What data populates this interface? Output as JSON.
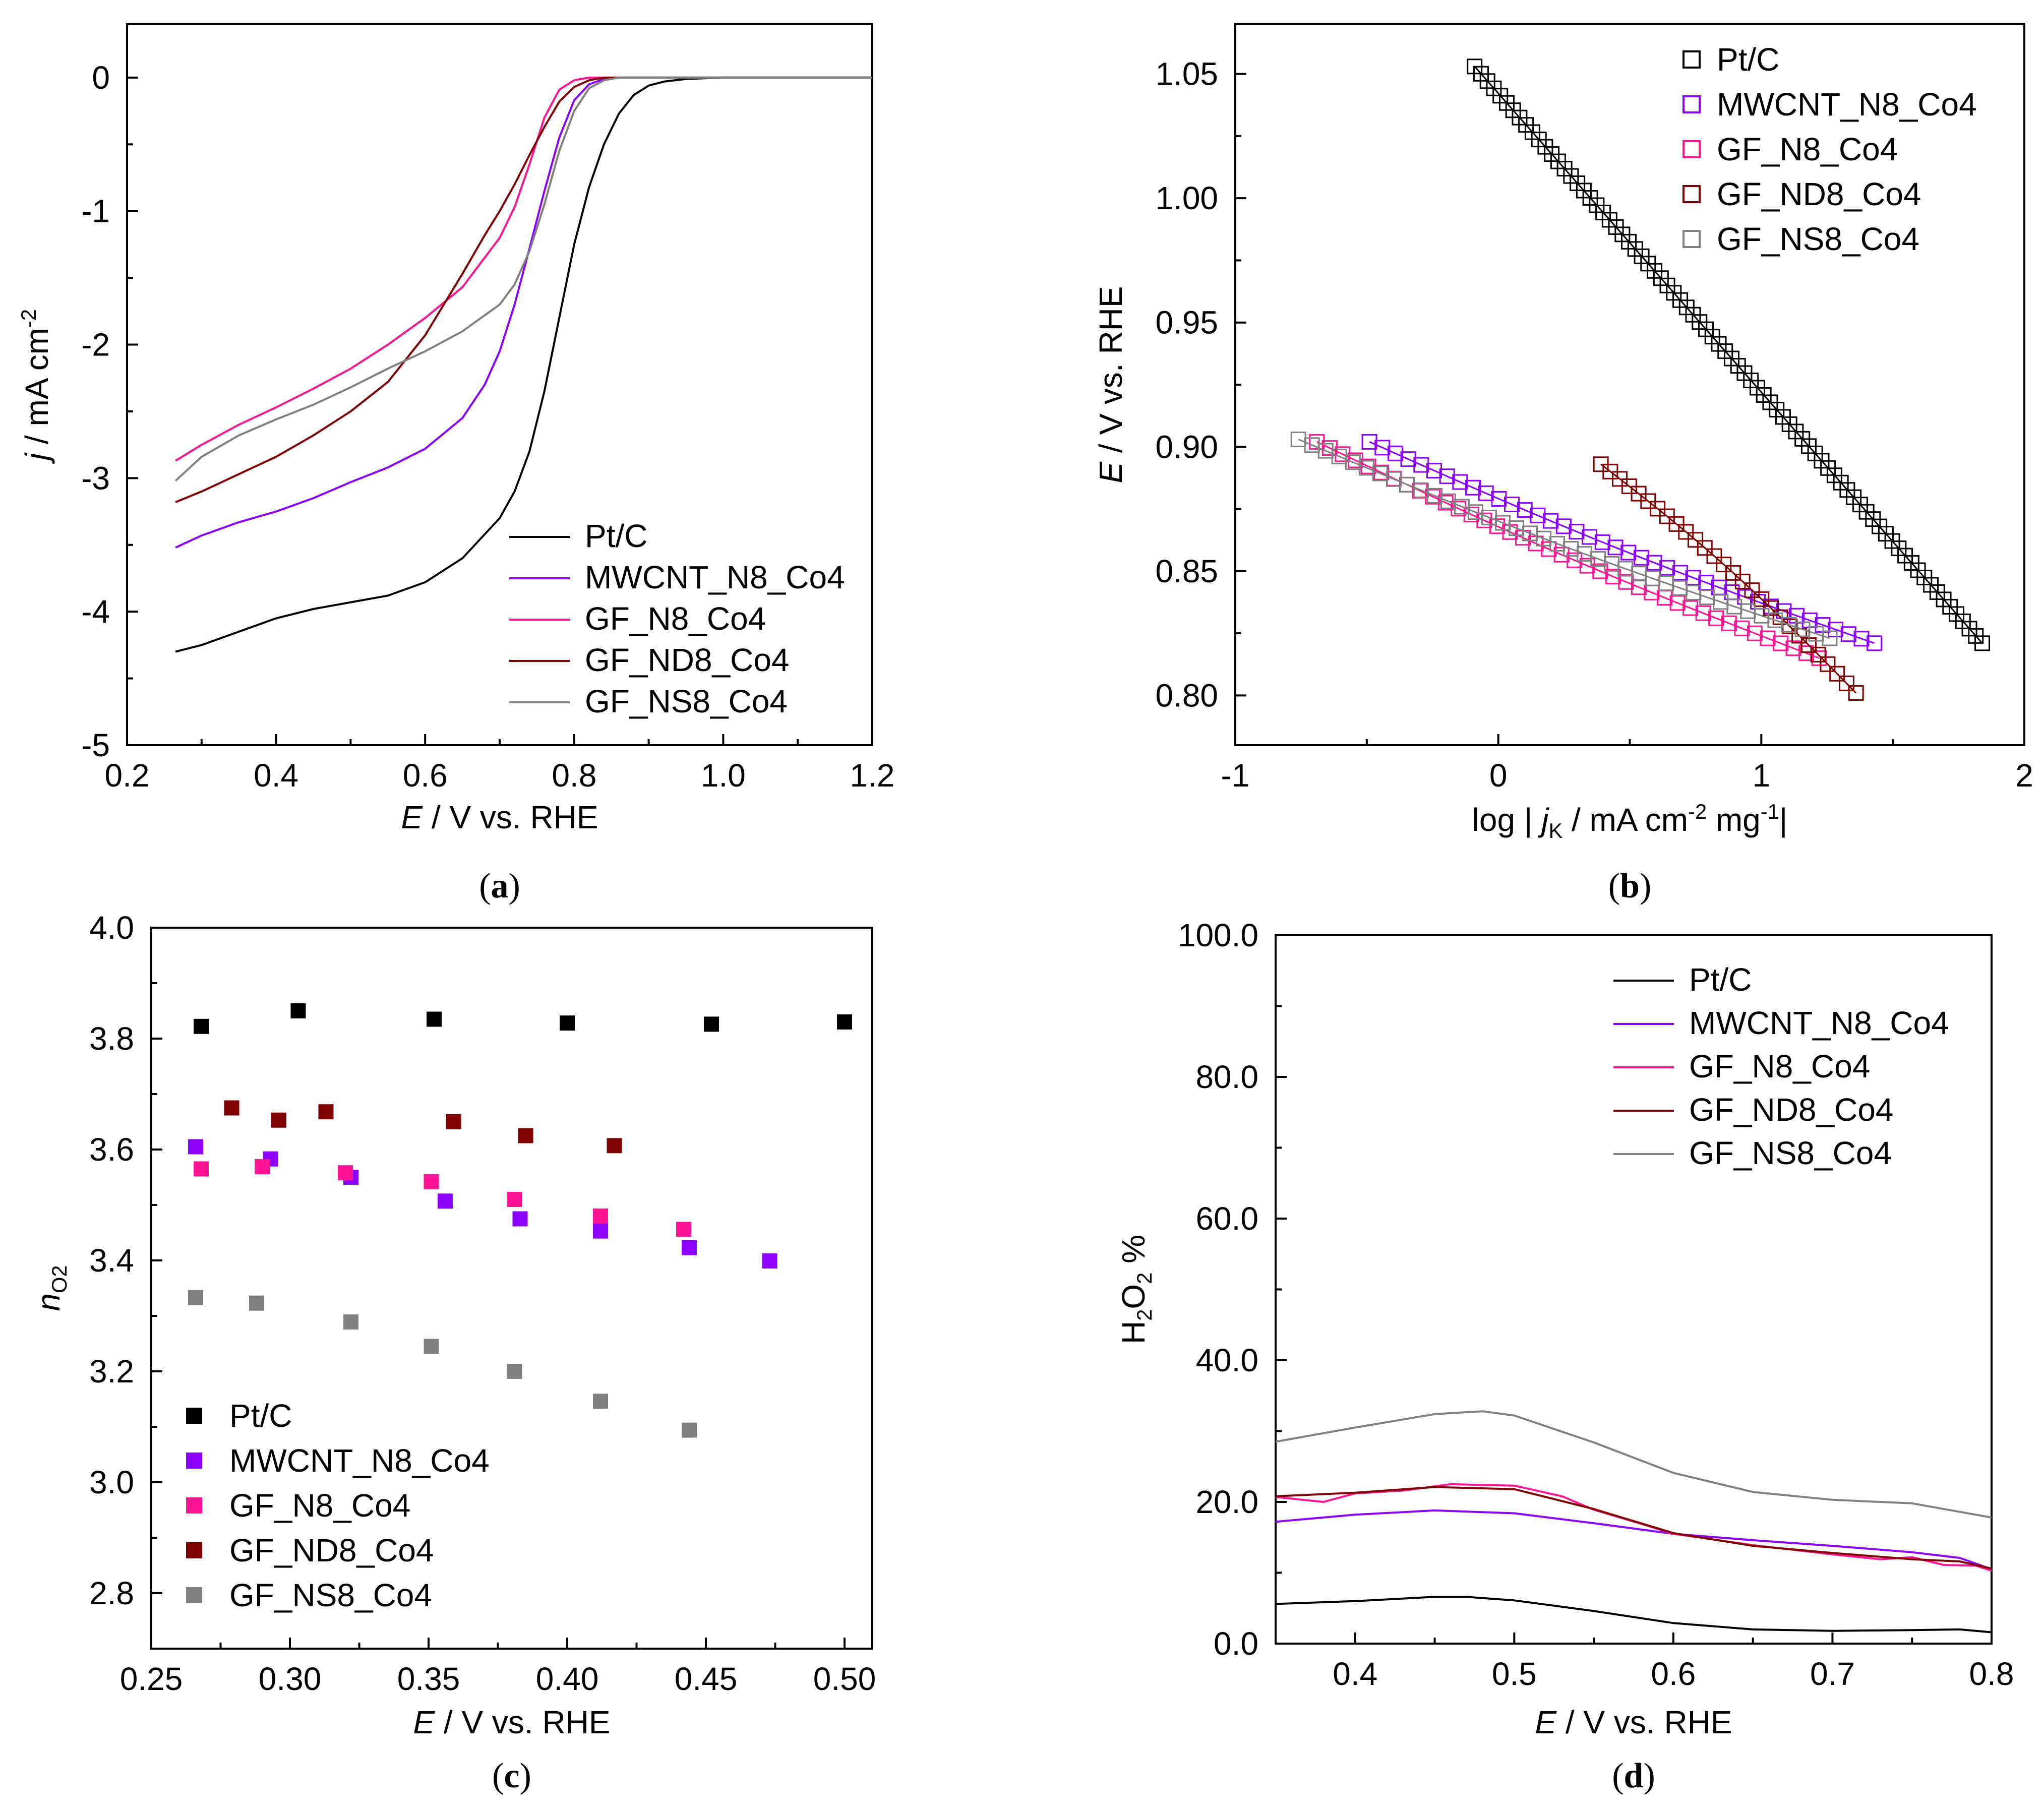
{
  "colors": {
    "ptc": "#000000",
    "mwcnt": "#8B00FF",
    "gfn8": "#FF1493",
    "gfnd8": "#800000",
    "gfns8": "#808080"
  },
  "chart_data": [
    {
      "type": "line",
      "panel": "(a)",
      "xlabel_italic": "E",
      "xlabel_rest": " / V vs. RHE",
      "ylabel_italic": "j",
      "ylabel_rest": " / mA cm",
      "ylabel_sup": "-2",
      "xlim": [
        0.2,
        1.2
      ],
      "ylim": [
        -5,
        0.4
      ],
      "xticks": [
        0.2,
        0.4,
        0.6,
        0.8,
        1.0,
        1.2
      ],
      "xtick_labels": [
        "0.2",
        "0.4",
        "0.6",
        "0.8",
        "1.0",
        "1.2"
      ],
      "yticks": [
        -5,
        -4,
        -3,
        -2,
        -1,
        0
      ],
      "ytick_labels": [
        "-5",
        "-4",
        "-3",
        "-2",
        "-1",
        "0"
      ],
      "legend": "bottom-right",
      "series": [
        {
          "name": "Pt/C",
          "color": "#000000",
          "x": [
            0.265,
            0.3,
            0.35,
            0.4,
            0.45,
            0.5,
            0.55,
            0.6,
            0.65,
            0.7,
            0.72,
            0.74,
            0.76,
            0.78,
            0.8,
            0.82,
            0.84,
            0.86,
            0.88,
            0.9,
            0.92,
            0.95,
            1.0,
            1.05,
            1.1,
            1.2
          ],
          "y": [
            -4.3,
            -4.25,
            -4.15,
            -4.05,
            -3.98,
            -3.93,
            -3.88,
            -3.78,
            -3.6,
            -3.3,
            -3.1,
            -2.8,
            -2.35,
            -1.8,
            -1.25,
            -0.82,
            -0.5,
            -0.27,
            -0.13,
            -0.06,
            -0.03,
            -0.01,
            0,
            0,
            0,
            0
          ]
        },
        {
          "name": "MWCNT_N8_Co4",
          "color": "#8B00FF",
          "x": [
            0.265,
            0.3,
            0.35,
            0.4,
            0.45,
            0.5,
            0.55,
            0.6,
            0.65,
            0.68,
            0.7,
            0.72,
            0.74,
            0.76,
            0.78,
            0.8,
            0.82,
            0.84,
            0.86,
            0.88,
            0.9,
            0.95,
            1.0,
            1.2
          ],
          "y": [
            -3.52,
            -3.43,
            -3.33,
            -3.25,
            -3.15,
            -3.03,
            -2.92,
            -2.78,
            -2.55,
            -2.3,
            -2.05,
            -1.7,
            -1.28,
            -0.85,
            -0.45,
            -0.17,
            -0.05,
            -0.01,
            0,
            0,
            0,
            0,
            0,
            0
          ]
        },
        {
          "name": "GF_N8_Co4",
          "color": "#FF1493",
          "x": [
            0.265,
            0.3,
            0.35,
            0.4,
            0.45,
            0.5,
            0.55,
            0.6,
            0.65,
            0.7,
            0.72,
            0.74,
            0.76,
            0.78,
            0.8,
            0.82,
            0.84,
            0.86,
            0.9,
            1.0,
            1.2
          ],
          "y": [
            -2.87,
            -2.75,
            -2.6,
            -2.47,
            -2.33,
            -2.18,
            -2.0,
            -1.8,
            -1.57,
            -1.2,
            -0.97,
            -0.65,
            -0.3,
            -0.09,
            -0.02,
            0,
            0,
            0,
            0,
            0,
            0
          ]
        },
        {
          "name": "GF_ND8_Co4",
          "color": "#800000",
          "x": [
            0.265,
            0.3,
            0.35,
            0.4,
            0.45,
            0.5,
            0.55,
            0.6,
            0.65,
            0.68,
            0.7,
            0.72,
            0.74,
            0.76,
            0.78,
            0.8,
            0.82,
            0.84,
            0.86,
            0.9,
            1.0,
            1.2
          ],
          "y": [
            -3.18,
            -3.1,
            -2.97,
            -2.84,
            -2.68,
            -2.5,
            -2.28,
            -1.93,
            -1.47,
            -1.18,
            -1.0,
            -0.8,
            -0.58,
            -0.37,
            -0.18,
            -0.07,
            -0.02,
            0,
            0,
            0,
            0,
            0
          ]
        },
        {
          "name": "GF_NS8_Co4",
          "color": "#808080",
          "x": [
            0.265,
            0.3,
            0.35,
            0.4,
            0.45,
            0.5,
            0.55,
            0.6,
            0.65,
            0.7,
            0.72,
            0.74,
            0.76,
            0.78,
            0.8,
            0.82,
            0.84,
            0.86,
            0.9,
            1.0,
            1.2
          ],
          "y": [
            -3.02,
            -2.84,
            -2.68,
            -2.56,
            -2.45,
            -2.32,
            -2.18,
            -2.05,
            -1.9,
            -1.7,
            -1.55,
            -1.3,
            -0.95,
            -0.55,
            -0.25,
            -0.08,
            -0.02,
            0,
            0,
            0,
            0
          ]
        }
      ]
    },
    {
      "type": "scatter",
      "panel": "(b)",
      "xlabel_pre": "log | ",
      "xlabel_italic": "j",
      "xlabel_sub": "K",
      "xlabel_mid": " / mA cm",
      "xlabel_sup1": "-2",
      "xlabel_mid2": " mg",
      "xlabel_sup2": "-1",
      "xlabel_end": "|",
      "ylabel_italic": "E",
      "ylabel_rest": " / V vs. RHE",
      "xlim": [
        -1,
        2
      ],
      "ylim": [
        0.78,
        1.07
      ],
      "xticks": [
        -1,
        0,
        1,
        2
      ],
      "xtick_labels": [
        "-1",
        "0",
        "1",
        "2"
      ],
      "yticks": [
        0.8,
        0.85,
        0.9,
        0.95,
        1.0,
        1.05
      ],
      "ytick_labels": [
        "0.80",
        "0.85",
        "0.90",
        "0.95",
        "1.00",
        "1.05"
      ],
      "legend": "top-right",
      "series": [
        {
          "name": "Pt/C",
          "color": "#000000",
          "x_start": -0.09,
          "x_end": 1.84,
          "y_start": 1.053,
          "y_end": 0.821,
          "points": 80
        },
        {
          "name": "MWCNT_N8_Co4",
          "color": "#8B00FF",
          "x_start": -0.49,
          "x_end": 1.43,
          "y_start": 0.902,
          "y_end": 0.821,
          "points": 40
        },
        {
          "name": "GF_N8_Co4",
          "color": "#FF1493",
          "x_start": -0.69,
          "x_end": 1.22,
          "y_start": 0.902,
          "y_end": 0.815,
          "points": 40
        },
        {
          "name": "GF_ND8_Co4",
          "color": "#800000",
          "x_start": 0.39,
          "x_end": 1.36,
          "y_start": 0.893,
          "y_end": 0.801,
          "points": 28
        },
        {
          "name": "GF_NS8_Co4",
          "color": "#808080",
          "x_start": -0.76,
          "x_end": 1.26,
          "y_start": 0.903,
          "y_end": 0.823,
          "points": 40
        }
      ]
    },
    {
      "type": "scatter",
      "panel": "(c)",
      "xlabel_italic": "E",
      "xlabel_rest": " / V vs. RHE",
      "ylabel_italic": "n",
      "ylabel_sub": "O2",
      "xlim": [
        0.25,
        0.51
      ],
      "ylim": [
        2.7,
        4.0
      ],
      "xticks": [
        0.25,
        0.3,
        0.35,
        0.4,
        0.45,
        0.5
      ],
      "xtick_labels": [
        "0.25",
        "0.30",
        "0.35",
        "0.40",
        "0.45",
        "0.50"
      ],
      "yticks": [
        2.8,
        3.0,
        3.2,
        3.4,
        3.6,
        3.8,
        4.0
      ],
      "ytick_labels": [
        "2.8",
        "3.0",
        "3.2",
        "3.4",
        "3.6",
        "3.8",
        "4.0"
      ],
      "legend": "bottom-left",
      "series": [
        {
          "name": "Pt/C",
          "color": "#000000",
          "x": [
            0.268,
            0.303,
            0.352,
            0.4,
            0.452,
            0.5
          ],
          "y": [
            3.822,
            3.85,
            3.835,
            3.828,
            3.826,
            3.83
          ]
        },
        {
          "name": "MWCNT_N8_Co4",
          "color": "#8B00FF",
          "x": [
            0.266,
            0.293,
            0.322,
            0.356,
            0.383,
            0.412,
            0.444,
            0.473
          ],
          "y": [
            3.605,
            3.583,
            3.55,
            3.507,
            3.475,
            3.453,
            3.423,
            3.399
          ]
        },
        {
          "name": "GF_N8_Co4",
          "color": "#FF1493",
          "x": [
            0.268,
            0.29,
            0.32,
            0.351,
            0.381,
            0.412,
            0.442
          ],
          "y": [
            3.565,
            3.569,
            3.558,
            3.542,
            3.51,
            3.48,
            3.456
          ]
        },
        {
          "name": "GF_ND8_Co4",
          "color": "#800000",
          "x": [
            0.279,
            0.296,
            0.313,
            0.359,
            0.385,
            0.417
          ],
          "y": [
            3.675,
            3.653,
            3.668,
            3.65,
            3.625,
            3.607
          ]
        },
        {
          "name": "GF_NS8_Co4",
          "color": "#808080",
          "x": [
            0.266,
            0.288,
            0.322,
            0.351,
            0.381,
            0.412,
            0.444
          ],
          "y": [
            3.333,
            3.323,
            3.289,
            3.245,
            3.2,
            3.146,
            3.094
          ]
        }
      ]
    },
    {
      "type": "line",
      "panel": "(d)",
      "xlabel_italic": "E",
      "xlabel_rest": " / V vs. RHE",
      "ylabel_main": "H",
      "ylabel_sub1": "2",
      "ylabel_mid": "O",
      "ylabel_sub2": "2",
      "ylabel_end": " %",
      "xlim": [
        0.35,
        0.8
      ],
      "ylim": [
        0,
        100
      ],
      "xticks": [
        0.4,
        0.5,
        0.6,
        0.7,
        0.8
      ],
      "xtick_labels": [
        "0.4",
        "0.5",
        "0.6",
        "0.7",
        "0.8"
      ],
      "yticks": [
        0,
        20,
        40,
        60,
        80,
        100
      ],
      "ytick_labels": [
        "0.0",
        "20.0",
        "40.0",
        "60.0",
        "80.0",
        "100.0"
      ],
      "legend": "top-right",
      "series": [
        {
          "name": "Pt/C",
          "color": "#000000",
          "x": [
            0.35,
            0.4,
            0.45,
            0.47,
            0.5,
            0.55,
            0.6,
            0.65,
            0.7,
            0.75,
            0.78,
            0.8
          ],
          "y": [
            5.6,
            6.0,
            6.6,
            6.6,
            6.1,
            4.6,
            2.9,
            2.0,
            1.8,
            1.9,
            2.0,
            1.6
          ]
        },
        {
          "name": "MWCNT_N8_Co4",
          "color": "#8B00FF",
          "x": [
            0.35,
            0.4,
            0.45,
            0.5,
            0.55,
            0.6,
            0.65,
            0.7,
            0.75,
            0.78,
            0.8
          ],
          "y": [
            17.2,
            18.2,
            18.8,
            18.4,
            17.0,
            15.5,
            14.6,
            13.8,
            12.9,
            12.1,
            10.5
          ]
        },
        {
          "name": "GF_N8_Co4",
          "color": "#FF1493",
          "x": [
            0.35,
            0.38,
            0.4,
            0.43,
            0.46,
            0.5,
            0.53,
            0.55,
            0.58,
            0.6,
            0.65,
            0.7,
            0.73,
            0.75,
            0.77,
            0.79,
            0.8
          ],
          "y": [
            20.7,
            20.0,
            21.2,
            21.6,
            22.5,
            22.3,
            20.8,
            18.9,
            16.9,
            15.5,
            13.9,
            12.6,
            11.9,
            12.2,
            11.1,
            11.0,
            10.3
          ]
        },
        {
          "name": "GF_ND8_Co4",
          "color": "#800000",
          "x": [
            0.35,
            0.4,
            0.45,
            0.5,
            0.55,
            0.6,
            0.65,
            0.7,
            0.75,
            0.78,
            0.8
          ],
          "y": [
            20.8,
            21.3,
            22.1,
            21.8,
            19.0,
            15.6,
            13.8,
            12.8,
            11.9,
            11.6,
            10.6
          ]
        },
        {
          "name": "GF_NS8_Co4",
          "color": "#808080",
          "x": [
            0.35,
            0.4,
            0.45,
            0.48,
            0.5,
            0.55,
            0.6,
            0.65,
            0.7,
            0.75,
            0.8
          ],
          "y": [
            28.5,
            30.5,
            32.4,
            32.8,
            32.2,
            28.4,
            24.1,
            21.4,
            20.3,
            19.8,
            17.8
          ]
        }
      ]
    }
  ]
}
